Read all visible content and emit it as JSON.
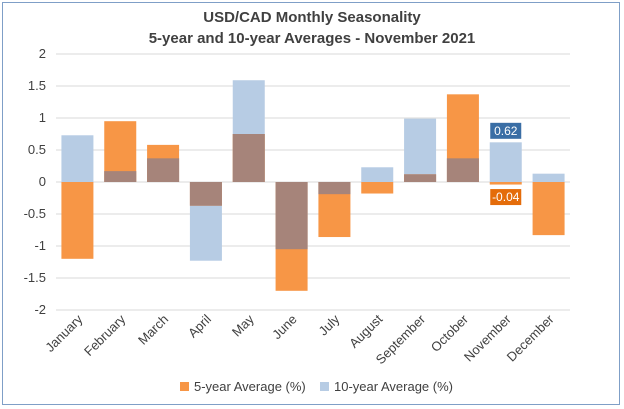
{
  "chart_data": {
    "type": "bar",
    "title": "USD/CAD Monthly Seasonality",
    "subtitle": "5-year and 10-year Averages - November 2021",
    "categories": [
      "January",
      "February",
      "March",
      "April",
      "May",
      "June",
      "July",
      "August",
      "September",
      "October",
      "November",
      "December"
    ],
    "series": [
      {
        "name": "5-year Average (%)",
        "color": "#f79646",
        "values": [
          -1.2,
          0.95,
          0.58,
          -0.37,
          0.75,
          -1.7,
          -0.86,
          -0.18,
          0.12,
          1.37,
          -0.04,
          -0.83
        ]
      },
      {
        "name": "10-year Average (%)",
        "color": "#b7cce4",
        "values": [
          0.73,
          0.17,
          0.37,
          -1.23,
          1.59,
          -1.05,
          -0.19,
          0.23,
          0.99,
          0.37,
          0.62,
          0.13
        ]
      }
    ],
    "overlap_color": "#a6847a",
    "ylim": [
      -2,
      2
    ],
    "yticks": [
      "2",
      "1.5",
      "1",
      "0.5",
      "0",
      "-0.5",
      "-1",
      "-1.5",
      "-2"
    ],
    "ytick_values": [
      2,
      1.5,
      1,
      0.5,
      0,
      -0.5,
      -1,
      -1.5,
      -2
    ],
    "grid": true,
    "legend_position": "bottom",
    "annotations": [
      {
        "label": "0.62",
        "category": "November",
        "series": "10-year Average (%)",
        "color": "#3a6ea5"
      },
      {
        "label": "-0.04",
        "category": "November",
        "series": "5-year Average (%)",
        "color": "#e46c0a"
      }
    ]
  }
}
